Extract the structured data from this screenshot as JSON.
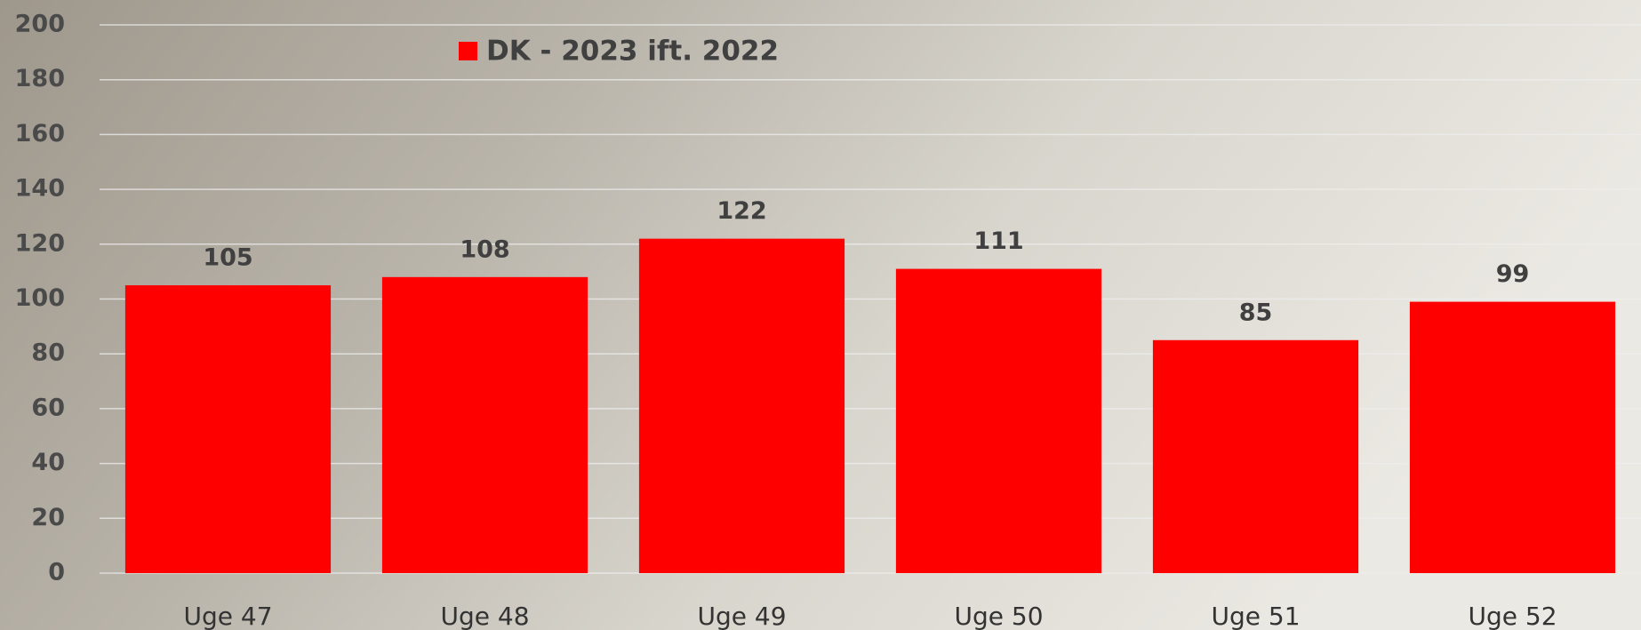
{
  "chart_data": {
    "type": "bar",
    "categories": [
      "Uge 47",
      "Uge 48",
      "Uge 49",
      "Uge 50",
      "Uge 51",
      "Uge 52"
    ],
    "series": [
      {
        "name": "DK - 2023 ift. 2022",
        "color": "#ff0000",
        "values": [
          105,
          108,
          122,
          111,
          85,
          99
        ]
      }
    ],
    "ylim": [
      0,
      200
    ],
    "yticks": [
      0,
      20,
      40,
      60,
      80,
      100,
      120,
      140,
      160,
      180,
      200
    ],
    "grid": true,
    "legend": "top"
  }
}
